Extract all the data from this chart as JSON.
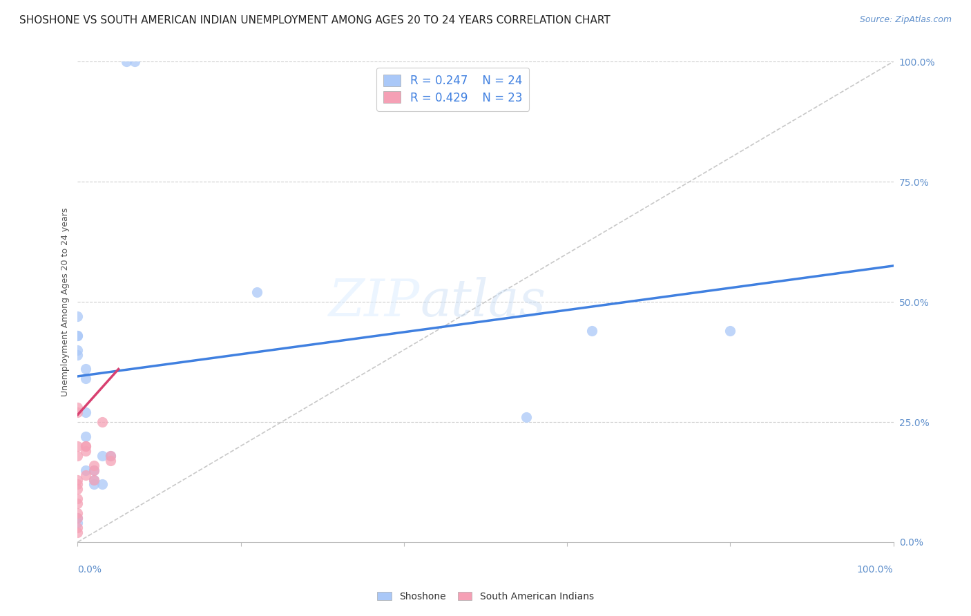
{
  "title": "SHOSHONE VS SOUTH AMERICAN INDIAN UNEMPLOYMENT AMONG AGES 20 TO 24 YEARS CORRELATION CHART",
  "source": "Source: ZipAtlas.com",
  "ylabel": "Unemployment Among Ages 20 to 24 years",
  "xlim": [
    0.0,
    1.0
  ],
  "ylim": [
    0.0,
    1.0
  ],
  "legend_r1": "R = 0.247",
  "legend_n1": "N = 24",
  "legend_r2": "R = 0.429",
  "legend_n2": "N = 23",
  "legend_label1": "Shoshone",
  "legend_label2": "South American Indians",
  "shoshone_color": "#aac8f8",
  "sai_color": "#f5a0b5",
  "blue_line_color": "#4080e0",
  "pink_line_color": "#d84070",
  "diagonal_color": "#c8c8c8",
  "watermark_zip": "ZIP",
  "watermark_atlas": "atlas",
  "shoshone_x": [
    0.06,
    0.07,
    0.0,
    0.0,
    0.0,
    0.0,
    0.0,
    0.01,
    0.01,
    0.01,
    0.02,
    0.02,
    0.02,
    0.03,
    0.03,
    0.04,
    0.0,
    0.0,
    0.22,
    0.01,
    0.01,
    0.63,
    0.8,
    0.55
  ],
  "shoshone_y": [
    1.0,
    1.0,
    0.47,
    0.43,
    0.43,
    0.4,
    0.39,
    0.36,
    0.34,
    0.15,
    0.15,
    0.13,
    0.12,
    0.12,
    0.18,
    0.18,
    0.05,
    0.04,
    0.52,
    0.22,
    0.27,
    0.44,
    0.44,
    0.26
  ],
  "sai_x": [
    0.0,
    0.0,
    0.0,
    0.0,
    0.0,
    0.0,
    0.0,
    0.0,
    0.0,
    0.01,
    0.01,
    0.01,
    0.01,
    0.02,
    0.02,
    0.02,
    0.03,
    0.04,
    0.04,
    0.0,
    0.0,
    0.0,
    0.0
  ],
  "sai_y": [
    0.28,
    0.27,
    0.2,
    0.18,
    0.13,
    0.12,
    0.11,
    0.09,
    0.08,
    0.2,
    0.2,
    0.19,
    0.14,
    0.13,
    0.15,
    0.16,
    0.25,
    0.18,
    0.17,
    0.06,
    0.05,
    0.03,
    0.02
  ],
  "blue_line_x": [
    0.0,
    1.0
  ],
  "blue_line_y": [
    0.345,
    0.575
  ],
  "pink_line_x": [
    0.0,
    0.05
  ],
  "pink_line_y": [
    0.265,
    0.36
  ],
  "grid_color": "#cccccc",
  "background_color": "#ffffff",
  "title_fontsize": 11,
  "source_fontsize": 9,
  "axis_fontsize": 10,
  "legend_fontsize": 12,
  "marker_size": 120,
  "tick_color": "#6090cc"
}
